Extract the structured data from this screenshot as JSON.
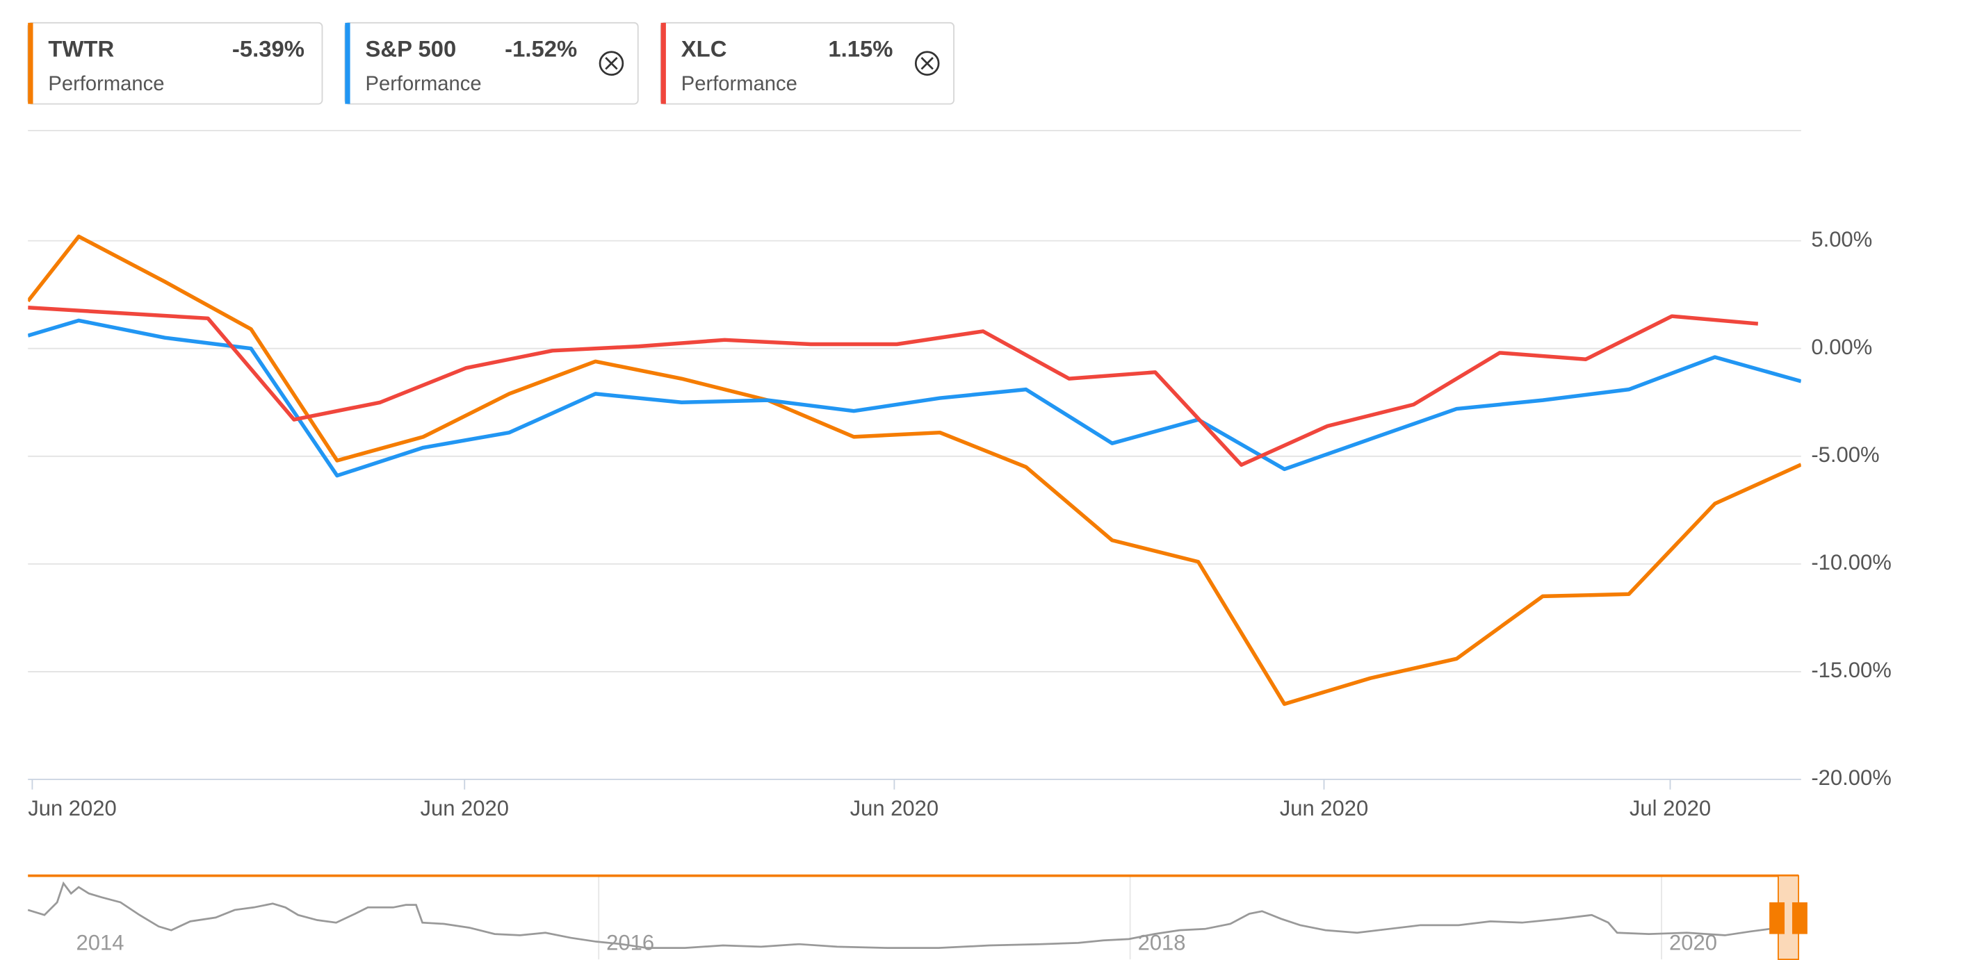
{
  "chart_data": {
    "type": "line",
    "series": [
      {
        "name": "TWTR",
        "color": "#f57c00",
        "subtitle": "Performance",
        "legend_value": -5.39,
        "legend_value_label": "-5.39%",
        "x": [
          -0.59,
          0,
          1,
          2,
          3,
          4,
          5,
          6,
          7,
          8,
          9,
          10,
          11,
          12,
          13,
          14,
          15,
          16,
          17,
          18,
          19,
          20
        ],
        "values": [
          2.2,
          5.2,
          3.1,
          0.9,
          -5.2,
          -4.1,
          -2.1,
          -0.6,
          -1.4,
          -2.4,
          -4.1,
          -3.9,
          -5.5,
          -8.9,
          -9.9,
          -16.5,
          -15.3,
          -14.4,
          -11.5,
          -11.4,
          -7.2,
          -5.39
        ]
      },
      {
        "name": "S&P 500",
        "color": "#2196f3",
        "subtitle": "Performance",
        "legend_value": -1.52,
        "legend_value_label": "-1.52%",
        "x": [
          -0.59,
          0,
          1,
          2,
          3,
          4,
          5,
          6,
          7,
          8,
          9,
          10,
          11,
          12,
          13,
          14,
          15,
          16,
          17,
          18,
          19,
          20
        ],
        "values": [
          0.6,
          1.3,
          0.5,
          0.0,
          -5.9,
          -4.6,
          -3.9,
          -2.1,
          -2.5,
          -2.4,
          -2.9,
          -2.3,
          -1.9,
          -4.4,
          -3.3,
          -5.6,
          -4.2,
          -2.8,
          -2.4,
          -1.9,
          -0.4,
          -1.52
        ]
      },
      {
        "name": "XLC",
        "color": "#f0463c",
        "subtitle": "Performance",
        "legend_value": 1.15,
        "legend_value_label": "1.15%",
        "x": [
          -0.59,
          1.5,
          2.5,
          3.5,
          4.5,
          5.5,
          6.5,
          7.5,
          8.5,
          9.5,
          10.5,
          11.5,
          12.5,
          13.5,
          14.5,
          15.5,
          16.5,
          17.5,
          18.5,
          19.5
        ],
        "values": [
          1.9,
          1.4,
          -3.3,
          -2.5,
          -0.9,
          -0.1,
          0.1,
          0.4,
          0.2,
          0.2,
          0.8,
          -1.4,
          -1.1,
          -5.4,
          -3.6,
          -2.6,
          -0.2,
          -0.5,
          1.5,
          1.15
        ]
      }
    ],
    "xlim": [
      -0.59,
      20
    ],
    "xticks": [
      {
        "value": -0.54,
        "label": "Jun 2020"
      },
      {
        "value": 4.48,
        "label": "Jun 2020"
      },
      {
        "value": 9.47,
        "label": "Jun 2020"
      },
      {
        "value": 14.46,
        "label": "Jun 2020"
      },
      {
        "value": 18.48,
        "label": "Jul 2020"
      }
    ],
    "ylim": [
      -20,
      10
    ],
    "yticks": [
      {
        "value": 5,
        "label": "5.00%"
      },
      {
        "value": 0,
        "label": "0.00%"
      },
      {
        "value": -5,
        "label": "-5.00%"
      },
      {
        "value": -10,
        "label": "-10.00%"
      },
      {
        "value": -15,
        "label": "-15.00%"
      },
      {
        "value": -20,
        "label": "-20.00%"
      }
    ],
    "grid": true,
    "navigator_labels": [
      "2014",
      "2016",
      "2018",
      "2020"
    ]
  }
}
